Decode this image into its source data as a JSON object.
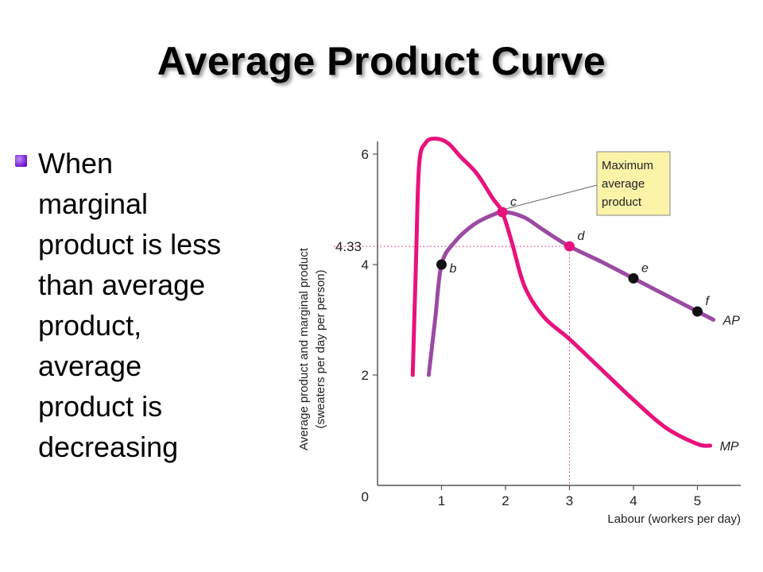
{
  "slide": {
    "title": "Average Product Curve",
    "bullet_text": "When\nmarginal\nproduct is less\nthan average\nproduct,\naverage\nproduct is\ndecreasing",
    "bullet_color": "#7a1fd6"
  },
  "chart_data": {
    "type": "line",
    "title": "",
    "xlabel": "Labour (workers per day)",
    "ylabel_line1": "Average product and marginal product",
    "ylabel_line2": "(sweaters per day per person)",
    "xlim": [
      0,
      5.65
    ],
    "ylim": [
      0,
      6.15
    ],
    "x_ticks": [
      0,
      1,
      2,
      3,
      4,
      5
    ],
    "y_ticks": [
      2,
      4,
      6
    ],
    "highlight_x_tick": 3,
    "highlight_y_value": 4.33,
    "highlight_y_label": "4.33",
    "grid": false,
    "colors": {
      "AP": "#9b4aa3",
      "MP": "#e8127c",
      "dots": "#111111",
      "highlight": "#e8127c",
      "callout_fill": "#fbf3a8"
    },
    "series": [
      {
        "name": "AP",
        "x": [
          0.8,
          0.9,
          1.0,
          1.2,
          1.5,
          1.8,
          2.0,
          2.3,
          2.6,
          3.0,
          3.5,
          4.0,
          4.5,
          5.0,
          5.25
        ],
        "y": [
          2.0,
          3.0,
          4.0,
          4.4,
          4.72,
          4.9,
          4.95,
          4.85,
          4.62,
          4.33,
          4.05,
          3.75,
          3.45,
          3.15,
          3.0
        ]
      },
      {
        "name": "MP",
        "x": [
          0.55,
          0.6,
          0.65,
          0.75,
          0.9,
          1.1,
          1.3,
          1.55,
          1.8,
          1.95,
          2.1,
          2.3,
          2.6,
          3.0,
          3.5,
          4.0,
          4.5,
          5.0,
          5.2
        ],
        "y": [
          2.0,
          4.0,
          5.8,
          6.2,
          6.28,
          6.2,
          5.95,
          5.65,
          5.2,
          4.95,
          4.4,
          3.6,
          3.05,
          2.65,
          2.1,
          1.55,
          1.05,
          0.75,
          0.72
        ]
      }
    ],
    "points": [
      {
        "label": "b",
        "x": 1,
        "y": 4.0,
        "color": "#111111"
      },
      {
        "label": "c",
        "x": 1.95,
        "y": 4.95,
        "color": "#e8127c"
      },
      {
        "label": "d",
        "x": 3,
        "y": 4.33,
        "color": "#e8127c"
      },
      {
        "label": "e",
        "x": 4,
        "y": 3.75,
        "color": "#111111"
      },
      {
        "label": "f",
        "x": 5,
        "y": 3.15,
        "color": "#111111"
      }
    ],
    "curve_labels": [
      {
        "text": "AP",
        "series": "AP"
      },
      {
        "text": "MP",
        "series": "MP"
      }
    ],
    "annotation": {
      "lines": [
        "Maximum",
        "average",
        "product"
      ],
      "target_point": "c"
    }
  }
}
